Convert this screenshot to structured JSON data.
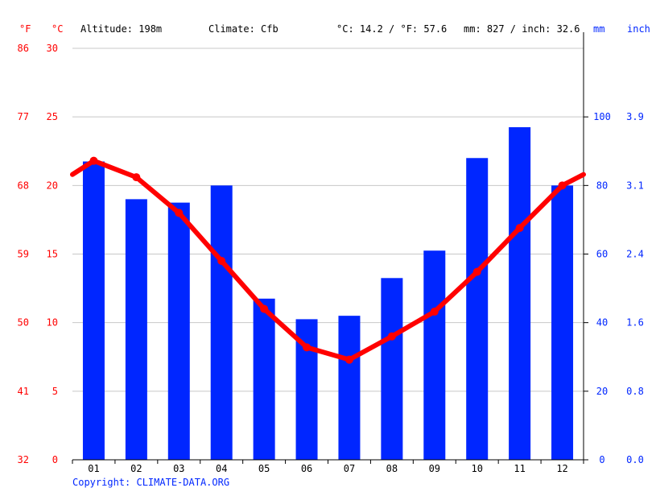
{
  "header": {
    "unit_f": "°F",
    "unit_c": "°C",
    "altitude": "Altitude: 198m",
    "climate": "Climate: Cfb",
    "temp_avg": "°C: 14.2 / °F: 57.6",
    "precip_total": "mm: 827 / inch: 32.6",
    "unit_mm": "mm",
    "unit_inch": "inch"
  },
  "copyright": "Copyright: CLIMATE-DATA.ORG",
  "colors": {
    "temperature": "#ff0000",
    "precipitation": "#0026ff",
    "grid": "#c8c8c8"
  },
  "chart_data": {
    "type": "bar+line",
    "categories": [
      "01",
      "02",
      "03",
      "04",
      "05",
      "06",
      "07",
      "08",
      "09",
      "10",
      "11",
      "12"
    ],
    "series": [
      {
        "name": "mm",
        "type": "bar",
        "axis": "right",
        "values": [
          87,
          76,
          75,
          80,
          47,
          41,
          42,
          53,
          61,
          88,
          97,
          80
        ]
      },
      {
        "name": "°C",
        "type": "line",
        "axis": "left",
        "values": [
          21.8,
          20.6,
          18.0,
          14.5,
          11.0,
          8.2,
          7.3,
          9.0,
          10.8,
          13.7,
          16.9,
          20.0
        ],
        "edge_values": [
          20.8,
          20.8
        ]
      }
    ],
    "y_left": {
      "ticks_c": [
        "0",
        "5",
        "10",
        "15",
        "20",
        "25",
        "30"
      ],
      "ticks_f": [
        "32",
        "41",
        "50",
        "59",
        "68",
        "77",
        "86"
      ],
      "range": [
        0,
        30
      ]
    },
    "y_right": {
      "ticks_mm": [
        "0",
        "20",
        "40",
        "60",
        "80",
        "100"
      ],
      "ticks_inch": [
        "0.0",
        "0.8",
        "1.6",
        "2.4",
        "3.1",
        "3.9"
      ],
      "range": [
        0,
        120
      ]
    },
    "grid": true
  }
}
